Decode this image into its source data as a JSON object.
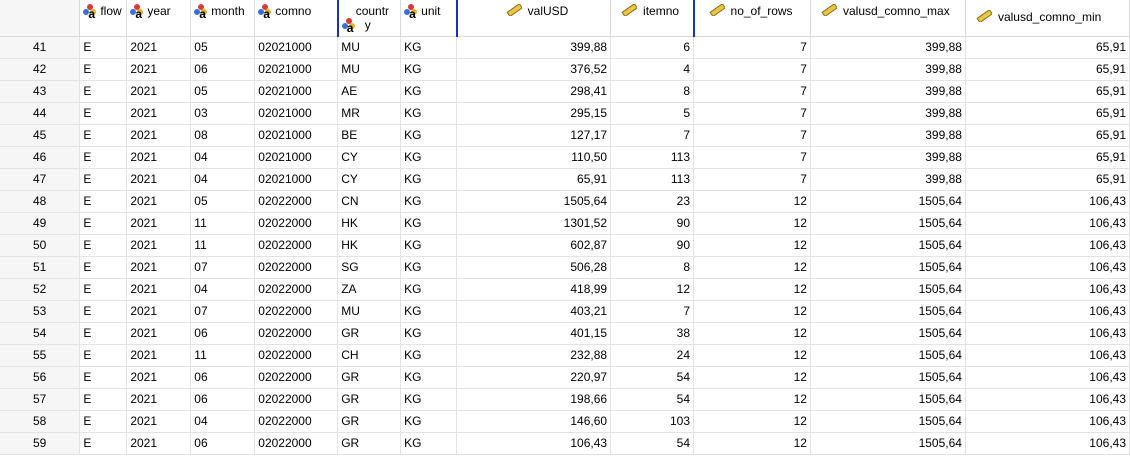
{
  "columns": [
    {
      "key": "rownum",
      "label": "",
      "type": "rownum"
    },
    {
      "key": "flow",
      "label": "flow",
      "type": "string"
    },
    {
      "key": "year",
      "label": "year",
      "type": "string"
    },
    {
      "key": "month",
      "label": "month",
      "type": "string"
    },
    {
      "key": "comno",
      "label": "comno",
      "type": "string"
    },
    {
      "key": "country",
      "label": "country",
      "label_line1": "countr",
      "label_line2": "y",
      "type": "string"
    },
    {
      "key": "unit",
      "label": "unit",
      "type": "string"
    },
    {
      "key": "valUSD",
      "label": "valUSD",
      "type": "scale"
    },
    {
      "key": "itemno",
      "label": "itemno",
      "type": "scale"
    },
    {
      "key": "no_of_rows",
      "label": "no_of_rows",
      "type": "scale"
    },
    {
      "key": "valusd_comno_max",
      "label": "valusd_comno_max",
      "type": "scale"
    },
    {
      "key": "valusd_comno_min",
      "label": "valusd_comno_min",
      "type": "scale"
    }
  ],
  "icons": {
    "string": "nominal-string-icon",
    "scale": "scale-ruler-icon"
  },
  "colors": {
    "selection_border": "#1a2fbf",
    "grid_line": "#e3e3e3",
    "rownum_bg": "#f6f6f6"
  },
  "rows": [
    [
      "41",
      "E",
      "2021",
      "05",
      "02021000",
      "MU",
      "KG",
      "399,88",
      "6",
      "7",
      "399,88",
      "65,91"
    ],
    [
      "42",
      "E",
      "2021",
      "06",
      "02021000",
      "MU",
      "KG",
      "376,52",
      "4",
      "7",
      "399,88",
      "65,91"
    ],
    [
      "43",
      "E",
      "2021",
      "05",
      "02021000",
      "AE",
      "KG",
      "298,41",
      "8",
      "7",
      "399,88",
      "65,91"
    ],
    [
      "44",
      "E",
      "2021",
      "03",
      "02021000",
      "MR",
      "KG",
      "295,15",
      "5",
      "7",
      "399,88",
      "65,91"
    ],
    [
      "45",
      "E",
      "2021",
      "08",
      "02021000",
      "BE",
      "KG",
      "127,17",
      "7",
      "7",
      "399,88",
      "65,91"
    ],
    [
      "46",
      "E",
      "2021",
      "04",
      "02021000",
      "CY",
      "KG",
      "110,50",
      "113",
      "7",
      "399,88",
      "65,91"
    ],
    [
      "47",
      "E",
      "2021",
      "04",
      "02021000",
      "CY",
      "KG",
      "65,91",
      "113",
      "7",
      "399,88",
      "65,91"
    ],
    [
      "48",
      "E",
      "2021",
      "05",
      "02022000",
      "CN",
      "KG",
      "1505,64",
      "23",
      "12",
      "1505,64",
      "106,43"
    ],
    [
      "49",
      "E",
      "2021",
      "11",
      "02022000",
      "HK",
      "KG",
      "1301,52",
      "90",
      "12",
      "1505,64",
      "106,43"
    ],
    [
      "50",
      "E",
      "2021",
      "11",
      "02022000",
      "HK",
      "KG",
      "602,87",
      "90",
      "12",
      "1505,64",
      "106,43"
    ],
    [
      "51",
      "E",
      "2021",
      "07",
      "02022000",
      "SG",
      "KG",
      "506,28",
      "8",
      "12",
      "1505,64",
      "106,43"
    ],
    [
      "52",
      "E",
      "2021",
      "04",
      "02022000",
      "ZA",
      "KG",
      "418,99",
      "12",
      "12",
      "1505,64",
      "106,43"
    ],
    [
      "53",
      "E",
      "2021",
      "07",
      "02022000",
      "MU",
      "KG",
      "403,21",
      "7",
      "12",
      "1505,64",
      "106,43"
    ],
    [
      "54",
      "E",
      "2021",
      "06",
      "02022000",
      "GR",
      "KG",
      "401,15",
      "38",
      "12",
      "1505,64",
      "106,43"
    ],
    [
      "55",
      "E",
      "2021",
      "11",
      "02022000",
      "CH",
      "KG",
      "232,88",
      "24",
      "12",
      "1505,64",
      "106,43"
    ],
    [
      "56",
      "E",
      "2021",
      "06",
      "02022000",
      "GR",
      "KG",
      "220,97",
      "54",
      "12",
      "1505,64",
      "106,43"
    ],
    [
      "57",
      "E",
      "2021",
      "06",
      "02022000",
      "GR",
      "KG",
      "198,66",
      "54",
      "12",
      "1505,64",
      "106,43"
    ],
    [
      "58",
      "E",
      "2021",
      "04",
      "02022000",
      "GR",
      "KG",
      "146,60",
      "103",
      "12",
      "1505,64",
      "106,43"
    ],
    [
      "59",
      "E",
      "2021",
      "06",
      "02022000",
      "GR",
      "KG",
      "106,43",
      "54",
      "12",
      "1505,64",
      "106,43"
    ]
  ]
}
